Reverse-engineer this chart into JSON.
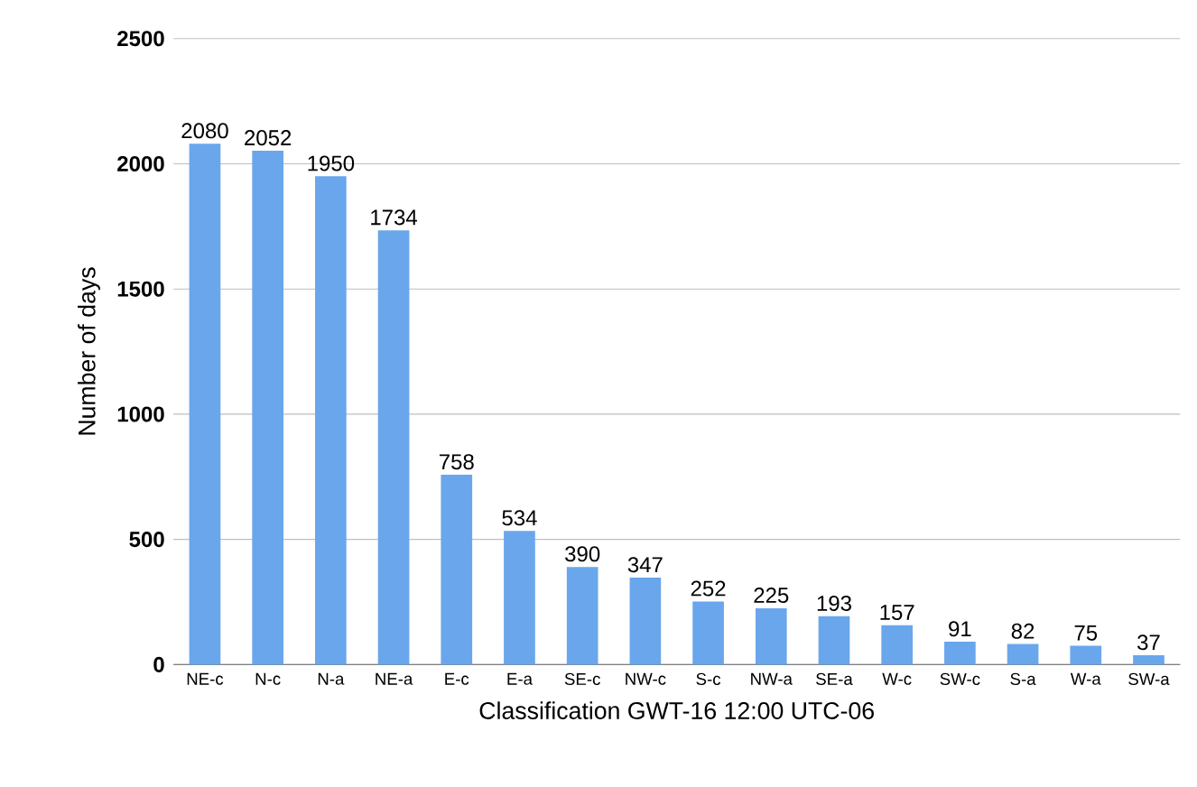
{
  "chart_data": {
    "type": "bar",
    "xlabel": "Classification GWT-16 12:00 UTC-06",
    "ylabel": "Number of days",
    "categories": [
      "NE-c",
      "N-c",
      "N-a",
      "NE-a",
      "E-c",
      "E-a",
      "SE-c",
      "NW-c",
      "S-c",
      "NW-a",
      "SE-a",
      "W-c",
      "SW-c",
      "S-a",
      "W-a",
      "SW-a"
    ],
    "values": [
      2080,
      2052,
      1950,
      1734,
      758,
      534,
      390,
      347,
      252,
      225,
      193,
      157,
      91,
      82,
      75,
      37
    ],
    "color": "#6aa6ec",
    "ylim": [
      0,
      2500
    ],
    "yticks": [
      0,
      500,
      1000,
      1500,
      2000,
      2500
    ],
    "grid": "y",
    "data_labels": true
  }
}
